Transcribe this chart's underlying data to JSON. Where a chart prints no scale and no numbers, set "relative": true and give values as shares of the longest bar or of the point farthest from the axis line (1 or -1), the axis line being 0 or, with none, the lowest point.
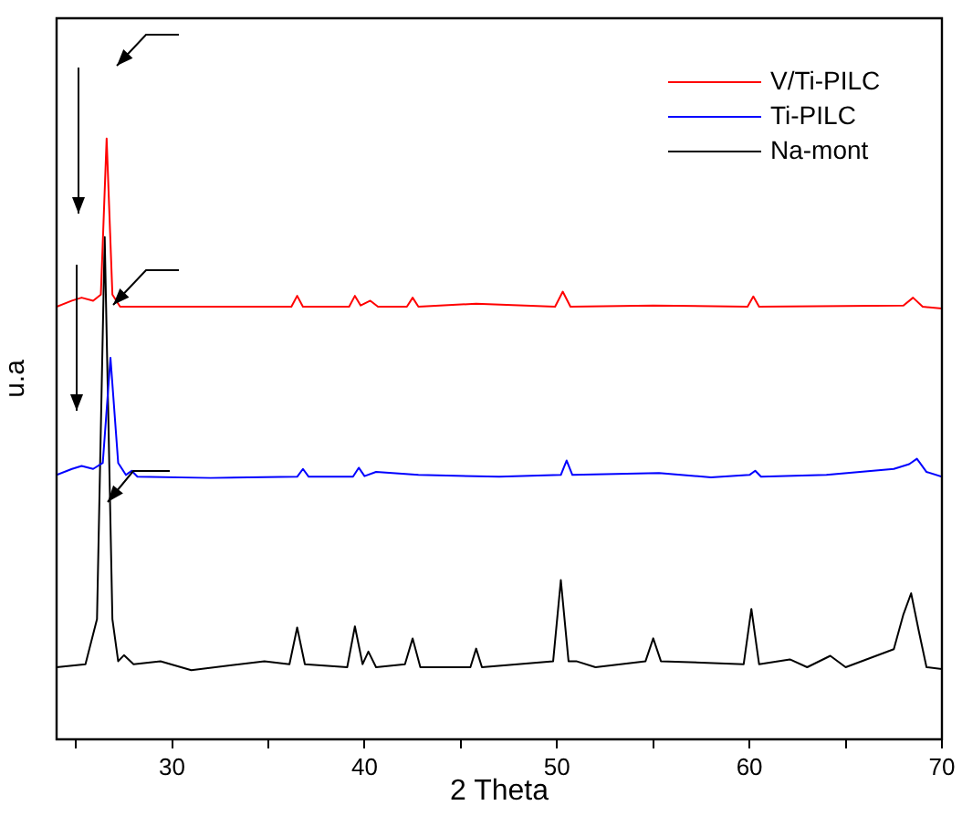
{
  "chart_data": {
    "type": "line",
    "xlabel": "2 Theta",
    "ylabel": "u.a",
    "relative": true,
    "xlim": [
      24,
      70
    ],
    "xticks": [
      {
        "value": 25,
        "label": null
      },
      30,
      {
        "value": 35,
        "label": null
      },
      40,
      {
        "value": 45,
        "label": null
      },
      50,
      {
        "value": 55,
        "label": null
      },
      60,
      {
        "value": 65,
        "label": null
      },
      70
    ],
    "grid": false,
    "legend": "top right",
    "marker": "none",
    "line_style": "solid",
    "series": [
      {
        "name": "V/Ti-PILC",
        "color": "#ff0000",
        "x": [
          24,
          24.8,
          25.3,
          25.9,
          26.3,
          26.6,
          26.9,
          27.3,
          30,
          33,
          36.2,
          36.5,
          36.8,
          39.2,
          39.5,
          39.8,
          40.3,
          40.7,
          42.2,
          42.5,
          42.8,
          45.8,
          49.9,
          50.3,
          50.7,
          55,
          59.9,
          60.2,
          60.5,
          68,
          68.5,
          69,
          70
        ],
        "values": [
          0.72,
          0.73,
          0.735,
          0.73,
          0.74,
          1.0,
          0.74,
          0.72,
          0.72,
          0.72,
          0.72,
          0.738,
          0.72,
          0.72,
          0.738,
          0.722,
          0.73,
          0.72,
          0.72,
          0.735,
          0.72,
          0.725,
          0.72,
          0.745,
          0.72,
          0.722,
          0.72,
          0.737,
          0.72,
          0.722,
          0.735,
          0.72,
          0.717
        ]
      },
      {
        "name": "Ti-PILC",
        "color": "#0000ff",
        "x": [
          24,
          24.8,
          25.3,
          25.9,
          26.4,
          26.8,
          27.2,
          27.6,
          27.9,
          28.2,
          32,
          36.5,
          36.8,
          37.1,
          39.4,
          39.7,
          40,
          40.6,
          42.8,
          47,
          50.2,
          50.5,
          50.8,
          55.3,
          58,
          60,
          60.3,
          60.6,
          64,
          67.5,
          68.3,
          68.7,
          69.2,
          70
        ],
        "values": [
          0.44,
          0.45,
          0.455,
          0.45,
          0.46,
          0.635,
          0.46,
          0.44,
          0.447,
          0.437,
          0.435,
          0.437,
          0.45,
          0.437,
          0.437,
          0.452,
          0.438,
          0.445,
          0.44,
          0.437,
          0.44,
          0.464,
          0.44,
          0.443,
          0.436,
          0.44,
          0.447,
          0.437,
          0.44,
          0.45,
          0.458,
          0.467,
          0.445,
          0.437
        ]
      },
      {
        "name": "Na-mont",
        "color": "#000000",
        "x": [
          24,
          25.5,
          26.1,
          26.5,
          26.9,
          27.2,
          27.5,
          28,
          29.4,
          31,
          34.8,
          36.1,
          36.5,
          36.9,
          39.1,
          39.5,
          39.9,
          40.2,
          40.6,
          42.1,
          42.5,
          42.9,
          45.5,
          45.8,
          46.1,
          49.8,
          50.2,
          50.6,
          51,
          52,
          54.6,
          55,
          55.4,
          59.7,
          60.1,
          60.5,
          62.1,
          63,
          64.2,
          65,
          67.5,
          68,
          68.4,
          68.8,
          69.2,
          70
        ],
        "values": [
          0.12,
          0.125,
          0.2,
          0.836,
          0.2,
          0.13,
          0.14,
          0.125,
          0.13,
          0.115,
          0.13,
          0.125,
          0.186,
          0.125,
          0.12,
          0.188,
          0.125,
          0.146,
          0.12,
          0.125,
          0.168,
          0.12,
          0.12,
          0.151,
          0.12,
          0.13,
          0.265,
          0.13,
          0.13,
          0.12,
          0.13,
          0.168,
          0.13,
          0.125,
          0.217,
          0.125,
          0.133,
          0.12,
          0.139,
          0.12,
          0.15,
          0.208,
          0.243,
          0.18,
          0.12,
          0.117
        ]
      }
    ]
  }
}
